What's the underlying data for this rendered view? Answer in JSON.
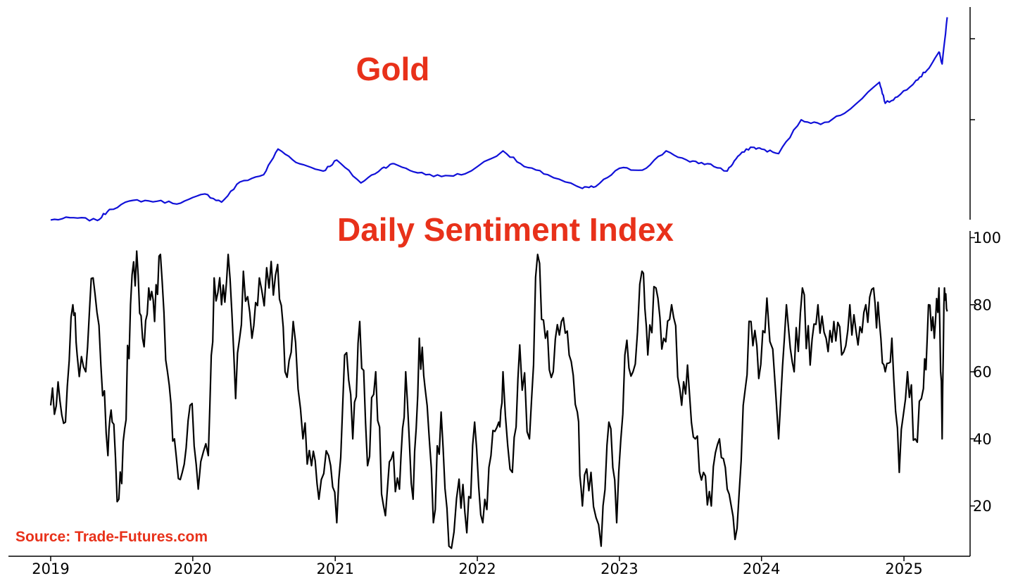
{
  "chart_data": [
    {
      "type": "line",
      "title": "Gold",
      "color": "#1010d8",
      "x_range": [
        "2019-01-01",
        "2025-06-09"
      ],
      "y_right_ticks_labeled": false,
      "grid": false,
      "series": [
        {
          "x": [
            "2019-01-01",
            "2019-03-01",
            "2019-05-01",
            "2019-06-01",
            "2019-08-01",
            "2019-10-01",
            "2019-12-01",
            "2020-02-01",
            "2020-03-15",
            "2020-05-01",
            "2020-07-01",
            "2020-08-07",
            "2020-10-01",
            "2020-12-01",
            "2021-01-05",
            "2021-03-08",
            "2021-05-01",
            "2021-06-01",
            "2021-08-01",
            "2021-10-01",
            "2021-12-01",
            "2022-03-08",
            "2022-05-01",
            "2022-07-01",
            "2022-09-28",
            "2022-11-01",
            "2023-01-01",
            "2023-03-01",
            "2023-05-01",
            "2023-07-01",
            "2023-08-15",
            "2023-10-05",
            "2023-11-01",
            "2023-12-04",
            "2024-01-01",
            "2024-02-14",
            "2024-04-12",
            "2024-06-01",
            "2024-08-01",
            "2024-10-30",
            "2024-11-14",
            "2024-12-15",
            "2025-02-01",
            "2025-03-01",
            "2025-04-01",
            "2025-04-09",
            "2025-04-22"
          ],
          "values": [
            1285,
            1310,
            1280,
            1400,
            1500,
            1490,
            1470,
            1570,
            1480,
            1700,
            1780,
            2060,
            1900,
            1820,
            1940,
            1690,
            1850,
            1900,
            1800,
            1760,
            1790,
            2040,
            1870,
            1780,
            1630,
            1650,
            1850,
            1830,
            2040,
            1920,
            1900,
            1820,
            1980,
            2080,
            2060,
            2010,
            2380,
            2330,
            2450,
            2790,
            2560,
            2630,
            2810,
            2920,
            3120,
            2990,
            3500
          ]
        }
      ]
    },
    {
      "type": "line",
      "title": "Daily Sentiment Index",
      "color": "#000000",
      "x_range": [
        "2019-01-01",
        "2025-06-09"
      ],
      "ylim": [
        5,
        102
      ],
      "y_ticks": [
        20,
        40,
        60,
        80,
        100
      ],
      "x_ticks": [
        "2019",
        "2020",
        "2021",
        "2022",
        "2023",
        "2024",
        "2025"
      ],
      "grid": false,
      "series": [
        {
          "x": [
            "2019-01-01",
            "2019-01-20",
            "2019-02-08",
            "2019-02-27",
            "2019-03-10",
            "2019-04-01",
            "2019-04-20",
            "2019-05-10",
            "2019-05-28",
            "2019-06-08",
            "2019-06-25",
            "2019-07-10",
            "2019-07-25",
            "2019-08-10",
            "2019-08-25",
            "2019-09-10",
            "2019-09-25",
            "2019-10-10",
            "2019-10-28",
            "2019-11-15",
            "2019-12-05",
            "2019-12-25",
            "2020-01-15",
            "2020-02-10",
            "2020-02-25",
            "2020-03-15",
            "2020-04-01",
            "2020-04-20",
            "2020-05-10",
            "2020-06-01",
            "2020-06-20",
            "2020-07-15",
            "2020-08-06",
            "2020-08-25",
            "2020-09-15",
            "2020-10-10",
            "2020-11-01",
            "2020-11-20",
            "2020-12-15",
            "2021-01-05",
            "2021-01-25",
            "2021-02-15",
            "2021-03-05",
            "2021-03-25",
            "2021-04-15",
            "2021-05-05",
            "2021-05-25",
            "2021-06-15",
            "2021-07-01",
            "2021-07-20",
            "2021-08-05",
            "2021-08-20",
            "2021-09-10",
            "2021-09-30",
            "2021-10-20",
            "2021-11-15",
            "2021-12-05",
            "2021-12-25",
            "2022-01-15",
            "2022-02-05",
            "2022-02-25",
            "2022-03-08",
            "2022-04-01",
            "2022-04-20",
            "2022-05-15",
            "2022-06-05",
            "2022-06-25",
            "2022-07-15",
            "2022-08-05",
            "2022-08-25",
            "2022-09-15",
            "2022-09-28",
            "2022-10-20",
            "2022-11-15",
            "2022-12-05",
            "2022-12-25",
            "2023-01-15",
            "2023-02-05",
            "2023-02-28",
            "2023-03-15",
            "2023-04-05",
            "2023-04-25",
            "2023-05-15",
            "2023-06-05",
            "2023-06-25",
            "2023-07-15",
            "2023-08-05",
            "2023-08-25",
            "2023-09-15",
            "2023-10-05",
            "2023-10-25",
            "2023-11-15",
            "2023-12-05",
            "2023-12-25",
            "2024-01-15",
            "2024-02-14",
            "2024-03-05",
            "2024-03-25",
            "2024-04-15",
            "2024-05-05",
            "2024-05-25",
            "2024-06-15",
            "2024-07-05",
            "2024-07-25",
            "2024-08-15",
            "2024-09-05",
            "2024-09-25",
            "2024-10-15",
            "2024-10-30",
            "2024-11-14",
            "2024-12-01",
            "2024-12-20",
            "2025-01-10",
            "2025-01-30",
            "2025-02-20",
            "2025-03-05",
            "2025-03-20",
            "2025-04-01",
            "2025-04-09",
            "2025-04-15",
            "2025-04-22"
          ],
          "values": [
            50,
            57,
            45,
            80,
            65,
            60,
            88,
            62,
            35,
            45,
            22,
            43,
            80,
            96,
            70,
            85,
            75,
            95,
            60,
            40,
            30,
            50,
            25,
            35,
            88,
            80,
            95,
            52,
            90,
            70,
            88,
            85,
            92,
            60,
            75,
            40,
            32,
            22,
            35,
            15,
            65,
            40,
            75,
            32,
            60,
            20,
            34,
            25,
            60,
            22,
            70,
            55,
            15,
            48,
            8,
            28,
            12,
            45,
            15,
            35,
            45,
            60,
            30,
            68,
            40,
            95,
            70,
            60,
            75,
            65,
            48,
            20,
            30,
            8,
            45,
            15,
            65,
            60,
            90,
            65,
            85,
            70,
            80,
            55,
            62,
            40,
            30,
            20,
            40,
            25,
            10,
            50,
            75,
            58,
            82,
            40,
            80,
            60,
            85,
            62,
            80,
            70,
            75,
            65,
            80,
            68,
            80,
            85,
            75,
            60,
            70,
            30,
            60,
            40,
            55,
            80,
            70,
            85,
            40,
            85,
            78
          ]
        }
      ]
    }
  ],
  "source": "Source: Trade-Futures.com"
}
